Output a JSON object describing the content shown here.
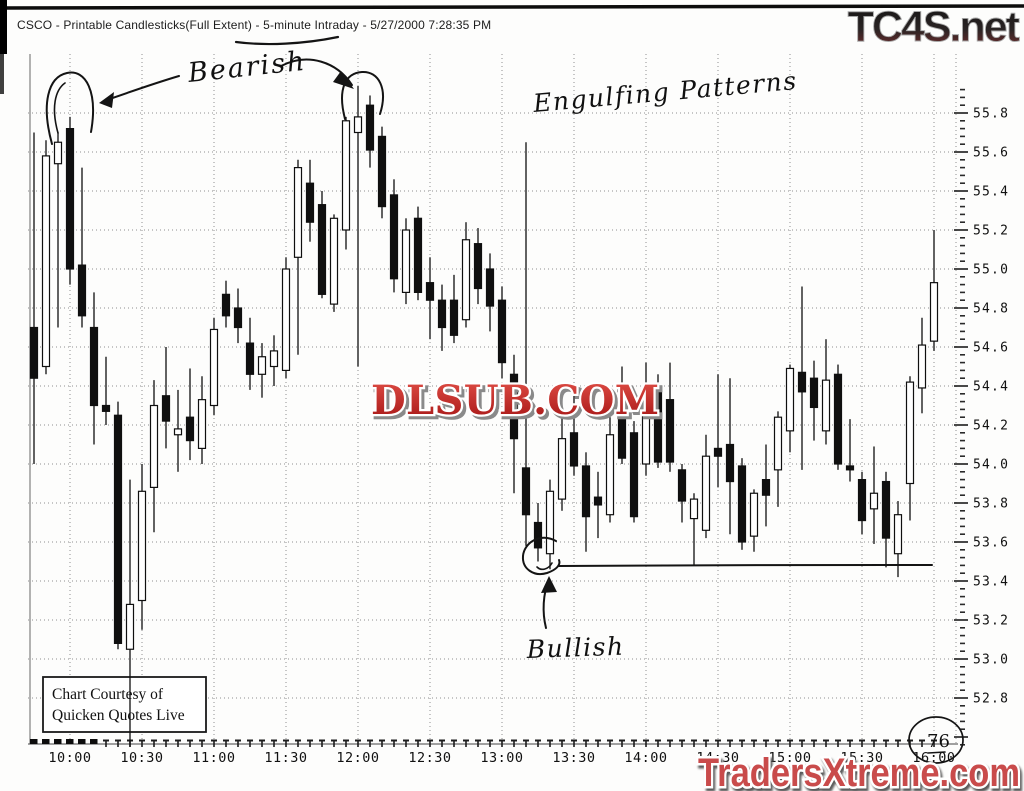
{
  "header": {
    "title": "CSCO - Printable Candlesticks(Full Extent) - 5-minute Intraday - 5/27/2000 7:28:35 PM"
  },
  "watermarks": {
    "top_right": "TC4S.net",
    "center": "DLSUB.COM",
    "bottom_right": "TradersXtreme.com"
  },
  "annotations": {
    "bearish": "Bearish",
    "engulfing": "Engulfing Patterns",
    "bullish": "Bullish",
    "bar_count": "76"
  },
  "courtesy_box": {
    "line1": "Chart Courtesy of",
    "line2": "Quicken Quotes Live"
  },
  "colors": {
    "candle_up": "#ffffff",
    "candle_down": "#0f0f0f",
    "candle_stroke": "#0f0f0f",
    "grid": "#8f8f8f",
    "axis_text": "#111111",
    "watermark_red": "#c01d1d",
    "watermark_pink": "#c94b4b"
  },
  "chart_data": {
    "type": "candlestick",
    "symbol": "CSCO",
    "interval": "5-minute Intraday",
    "date": "5/27/2000",
    "title": "CSCO 5-minute Intraday Candlesticks",
    "grid": true,
    "y_axis_side": "right",
    "ylim": [
      52.5,
      56.0
    ],
    "y_ticks": [
      55.8,
      55.6,
      55.4,
      55.2,
      55.0,
      54.8,
      54.6,
      54.4,
      54.2,
      54.0,
      53.8,
      53.6,
      53.4,
      53.2,
      53.0,
      52.8
    ],
    "x_labels": [
      "10:00",
      "10:30",
      "11:00",
      "11:30",
      "12:00",
      "12:30",
      "13:00",
      "13:30",
      "14:00",
      "14:30",
      "15:00",
      "15:30",
      "16:00"
    ],
    "bar_format": [
      "time",
      "open",
      "high",
      "low",
      "close"
    ],
    "bars": [
      [
        "09:45",
        54.7,
        55.7,
        54.0,
        54.44
      ],
      [
        "09:50",
        54.5,
        55.66,
        54.46,
        55.58
      ],
      [
        "09:55",
        55.54,
        55.7,
        54.7,
        55.65
      ],
      [
        "10:00",
        55.72,
        55.78,
        54.92,
        55.0
      ],
      [
        "10:05",
        55.02,
        55.52,
        54.7,
        54.76
      ],
      [
        "10:10",
        54.7,
        54.88,
        54.1,
        54.3
      ],
      [
        "10:15",
        54.3,
        54.55,
        54.2,
        54.27
      ],
      [
        "10:20",
        54.25,
        54.32,
        53.05,
        53.08
      ],
      [
        "10:25",
        53.05,
        53.92,
        52.55,
        53.28
      ],
      [
        "10:30",
        53.3,
        54.0,
        53.15,
        53.86
      ],
      [
        "10:35",
        53.88,
        54.43,
        53.65,
        54.3
      ],
      [
        "10:40",
        54.35,
        54.6,
        54.08,
        54.22
      ],
      [
        "10:45",
        54.15,
        54.38,
        53.96,
        54.18
      ],
      [
        "10:50",
        54.24,
        54.49,
        54.02,
        54.12
      ],
      [
        "10:55",
        54.08,
        54.45,
        54.0,
        54.33
      ],
      [
        "11:00",
        54.3,
        54.75,
        54.25,
        54.69
      ],
      [
        "11:05",
        54.87,
        54.94,
        54.7,
        54.76
      ],
      [
        "11:10",
        54.8,
        54.9,
        54.62,
        54.7
      ],
      [
        "11:15",
        54.62,
        54.75,
        54.38,
        54.46
      ],
      [
        "11:20",
        54.46,
        54.62,
        54.34,
        54.55
      ],
      [
        "11:25",
        54.5,
        54.66,
        54.4,
        54.58
      ],
      [
        "11:30",
        54.48,
        55.06,
        54.44,
        55.0
      ],
      [
        "11:35",
        55.06,
        55.56,
        54.56,
        55.52
      ],
      [
        "11:40",
        55.44,
        55.56,
        55.14,
        55.24
      ],
      [
        "11:45",
        55.33,
        55.4,
        54.85,
        54.87
      ],
      [
        "11:50",
        54.82,
        55.28,
        54.78,
        55.26
      ],
      [
        "11:55",
        55.2,
        55.78,
        55.1,
        55.76
      ],
      [
        "12:00",
        55.7,
        55.94,
        54.5,
        55.78
      ],
      [
        "12:05",
        55.84,
        55.89,
        55.52,
        55.61
      ],
      [
        "12:10",
        55.68,
        55.73,
        55.26,
        55.32
      ],
      [
        "12:15",
        55.38,
        55.46,
        54.88,
        54.95
      ],
      [
        "12:20",
        54.88,
        55.26,
        54.82,
        55.2
      ],
      [
        "12:25",
        55.26,
        55.32,
        54.84,
        54.88
      ],
      [
        "12:30",
        54.93,
        55.06,
        54.64,
        54.84
      ],
      [
        "12:35",
        54.84,
        54.92,
        54.58,
        54.7
      ],
      [
        "12:40",
        54.84,
        54.97,
        54.62,
        54.66
      ],
      [
        "12:45",
        54.74,
        55.24,
        54.7,
        55.15
      ],
      [
        "12:50",
        55.13,
        55.21,
        54.82,
        54.9
      ],
      [
        "12:55",
        55.0,
        55.08,
        54.68,
        54.81
      ],
      [
        "13:00",
        54.84,
        54.91,
        54.44,
        54.52
      ],
      [
        "13:05",
        54.46,
        54.56,
        53.85,
        54.13
      ],
      [
        "13:10",
        53.98,
        55.65,
        53.58,
        53.74
      ],
      [
        "13:15",
        53.7,
        53.8,
        53.5,
        53.57
      ],
      [
        "13:20",
        53.54,
        53.92,
        53.46,
        53.86
      ],
      [
        "13:25",
        53.82,
        54.26,
        53.76,
        54.13
      ],
      [
        "13:30",
        54.16,
        54.4,
        53.94,
        53.99
      ],
      [
        "13:35",
        53.99,
        54.06,
        53.55,
        53.73
      ],
      [
        "13:40",
        53.83,
        53.96,
        53.62,
        53.79
      ],
      [
        "13:45",
        53.74,
        54.24,
        53.7,
        54.15
      ],
      [
        "13:50",
        54.24,
        54.5,
        54.0,
        54.03
      ],
      [
        "13:55",
        54.16,
        54.22,
        53.7,
        53.73
      ],
      [
        "14:00",
        54.0,
        54.52,
        53.94,
        54.31
      ],
      [
        "14:05",
        54.4,
        54.46,
        53.98,
        54.01
      ],
      [
        "14:10",
        54.33,
        54.52,
        53.96,
        54.01
      ],
      [
        "14:15",
        53.97,
        54.0,
        53.7,
        53.81
      ],
      [
        "14:20",
        53.72,
        53.85,
        53.48,
        53.82
      ],
      [
        "14:25",
        53.66,
        54.15,
        53.62,
        54.04
      ],
      [
        "14:30",
        54.08,
        54.46,
        53.88,
        54.04
      ],
      [
        "14:35",
        54.1,
        54.44,
        53.64,
        53.91
      ],
      [
        "14:40",
        53.99,
        54.03,
        53.56,
        53.6
      ],
      [
        "14:45",
        53.63,
        53.87,
        53.55,
        53.85
      ],
      [
        "14:50",
        53.92,
        54.1,
        53.68,
        53.84
      ],
      [
        "14:55",
        53.97,
        54.27,
        53.78,
        54.24
      ],
      [
        "15:00",
        54.17,
        54.51,
        54.06,
        54.49
      ],
      [
        "15:05",
        54.47,
        54.91,
        53.97,
        54.37
      ],
      [
        "15:10",
        54.44,
        54.53,
        54.12,
        54.29
      ],
      [
        "15:15",
        54.17,
        54.64,
        54.1,
        54.43
      ],
      [
        "15:20",
        54.46,
        54.51,
        53.97,
        54.0
      ],
      [
        "15:25",
        53.99,
        54.23,
        53.91,
        53.97
      ],
      [
        "15:30",
        53.92,
        53.96,
        53.64,
        53.71
      ],
      [
        "15:35",
        53.77,
        54.09,
        53.59,
        53.85
      ],
      [
        "15:40",
        53.91,
        53.96,
        53.47,
        53.62
      ],
      [
        "15:45",
        53.54,
        53.81,
        53.42,
        53.74
      ],
      [
        "15:50",
        53.9,
        54.45,
        53.71,
        54.42
      ],
      [
        "15:55",
        54.39,
        54.75,
        54.26,
        54.61
      ],
      [
        "16:00",
        54.63,
        55.2,
        54.58,
        54.93
      ]
    ],
    "hand_drawn": {
      "support_line_price": 53.48,
      "circled_patterns": [
        "bearish engulfing ~10:00",
        "bearish engulfing ~12:00",
        "bullish engulfing ~13:20"
      ]
    }
  }
}
